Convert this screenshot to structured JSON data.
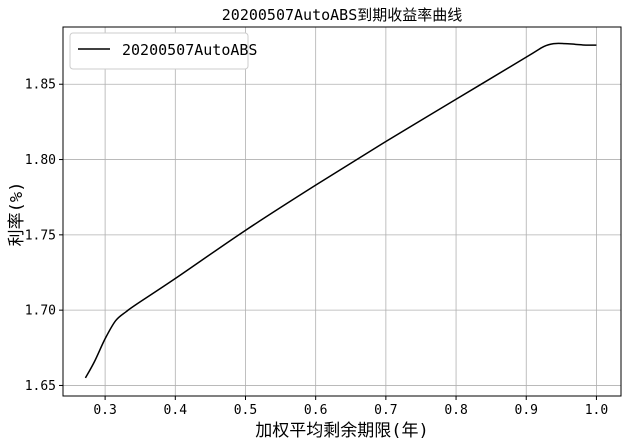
{
  "chart_data": {
    "type": "line",
    "title": "20200507AutoABS到期收益率曲线",
    "xlabel": "加权平均剩余期限(年)",
    "ylabel": "利率(%)",
    "xlim": [
      0.24,
      1.035
    ],
    "ylim": [
      1.643,
      1.888
    ],
    "xticks": [
      0.3,
      0.4,
      0.5,
      0.6,
      0.7,
      0.8,
      0.9,
      1.0
    ],
    "xtick_labels": [
      "0.3",
      "0.4",
      "0.5",
      "0.6",
      "0.7",
      "0.8",
      "0.9",
      "1.0"
    ],
    "yticks": [
      1.65,
      1.7,
      1.75,
      1.8,
      1.85
    ],
    "ytick_labels": [
      "1.65",
      "1.70",
      "1.75",
      "1.80",
      "1.85"
    ],
    "grid": true,
    "legend_position": "top-left",
    "series": [
      {
        "name": "20200507AutoABS",
        "color": "#000000",
        "x": [
          0.272,
          0.285,
          0.3,
          0.315,
          0.33,
          0.345,
          0.4,
          0.5,
          0.6,
          0.7,
          0.8,
          0.9,
          0.925,
          0.94,
          0.955,
          0.97,
          0.985,
          1.0
        ],
        "y": [
          1.655,
          1.666,
          1.681,
          1.693,
          1.699,
          1.704,
          1.721,
          1.753,
          1.783,
          1.812,
          1.84,
          1.868,
          1.875,
          1.877,
          1.877,
          1.8765,
          1.876,
          1.876
        ]
      }
    ]
  }
}
